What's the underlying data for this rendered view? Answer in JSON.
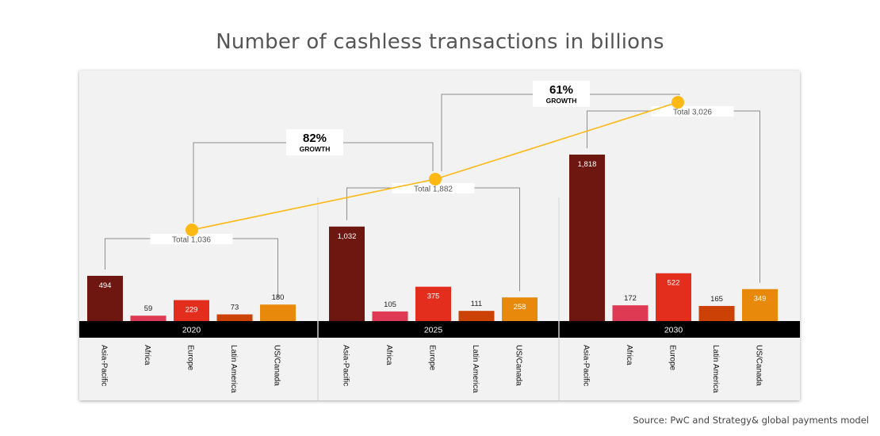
{
  "title": "Number of cashless transactions in billions",
  "source": "Source:  PwC and Strategy& global payments model",
  "chart_data": {
    "type": "bar",
    "title": "Number of cashless transactions in billions",
    "groups": [
      "2020",
      "2025",
      "2030"
    ],
    "categories": [
      "Asia-Pacific",
      "Africa",
      "Europe",
      "Latin America",
      "US/Canada"
    ],
    "colors": [
      "#6e1711",
      "#de3a53",
      "#e32e1e",
      "#cc4206",
      "#e8890b"
    ],
    "values": [
      [
        494,
        59,
        229,
        73,
        180
      ],
      [
        1032,
        105,
        375,
        111,
        258
      ],
      [
        1818,
        172,
        522,
        165,
        349
      ]
    ],
    "value_labels": [
      [
        "494",
        "59",
        "229",
        "73",
        "180"
      ],
      [
        "1,032",
        "105",
        "375",
        "111",
        "258"
      ],
      [
        "1,818",
        "172",
        "522",
        "165",
        "349"
      ]
    ],
    "totals": [
      1036,
      1882,
      3026
    ],
    "total_labels": [
      "Total 1,036",
      "Total 1,882",
      "Total 3,026"
    ],
    "growth": [
      {
        "from": "2020",
        "to": "2025",
        "percent": "82%",
        "label": "GROWTH"
      },
      {
        "from": "2025",
        "to": "2030",
        "percent": "61%",
        "label": "GROWTH"
      }
    ],
    "line_color": "#fdb813",
    "year_band_color": "#000000"
  }
}
